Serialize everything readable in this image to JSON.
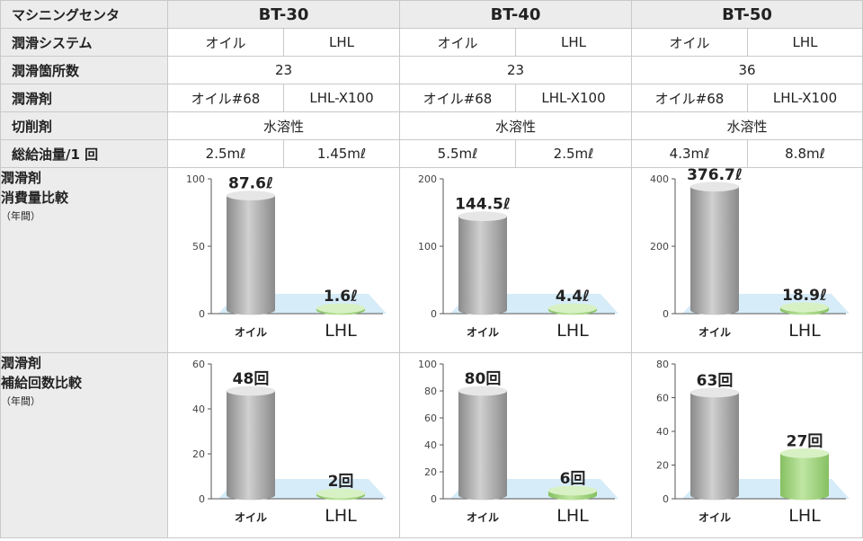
{
  "header": {
    "corner_label": "マシニングセンタ",
    "models": [
      "BT-30",
      "BT-40",
      "BT-50"
    ]
  },
  "rows": [
    {
      "label": "潤滑システム",
      "cells": [
        "オイル",
        "LHL",
        "オイル",
        "LHL",
        "オイル",
        "LHL"
      ]
    },
    {
      "label": "潤滑箇所数",
      "cells": [
        "23",
        "23",
        "36"
      ]
    },
    {
      "label": "潤滑剤",
      "cells": [
        "オイル#68",
        "LHL-X100",
        "オイル#68",
        "LHL-X100",
        "オイル#68",
        "LHL-X100"
      ]
    },
    {
      "label": "切削剤",
      "cells": [
        "水溶性",
        "水溶性",
        "水溶性"
      ]
    },
    {
      "label": "総給油量/1 回",
      "cells": [
        "2.5mℓ",
        "1.45mℓ",
        "5.5mℓ",
        "2.5mℓ",
        "4.3mℓ",
        "8.8mℓ"
      ]
    }
  ],
  "consumption": {
    "label_line1": "潤滑剤",
    "label_line2": "消費量比較",
    "label_sub": "（年間）"
  },
  "refill": {
    "label_line1": "潤滑剤",
    "label_line2": "補給回数比較",
    "label_sub": "（年間）"
  },
  "colors": {
    "oil": "#a8a8a8",
    "lhl": "#9fd07a",
    "floor": "#cfe9f7",
    "header_bg": "#ececec"
  },
  "chart_data": [
    {
      "type": "bar",
      "group": "consumption",
      "model": "BT-30",
      "categories": [
        "オイル",
        "LHL"
      ],
      "values": [
        87.6,
        1.6
      ],
      "value_labels": [
        "87.6ℓ",
        "1.6ℓ"
      ],
      "ylim": [
        0,
        100
      ],
      "yticks": [
        "0",
        "50",
        "100"
      ]
    },
    {
      "type": "bar",
      "group": "consumption",
      "model": "BT-40",
      "categories": [
        "オイル",
        "LHL"
      ],
      "values": [
        144.5,
        4.4
      ],
      "value_labels": [
        "144.5ℓ",
        "4.4ℓ"
      ],
      "ylim": [
        0,
        200
      ],
      "yticks": [
        "0",
        "100",
        "200"
      ]
    },
    {
      "type": "bar",
      "group": "consumption",
      "model": "BT-50",
      "categories": [
        "オイル",
        "LHL"
      ],
      "values": [
        376.7,
        18.9
      ],
      "value_labels": [
        "376.7ℓ",
        "18.9ℓ"
      ],
      "ylim": [
        0,
        400
      ],
      "yticks": [
        "0",
        "200",
        "400"
      ]
    },
    {
      "type": "bar",
      "group": "refill",
      "model": "BT-30",
      "categories": [
        "オイル",
        "LHL"
      ],
      "values": [
        48,
        2
      ],
      "value_labels": [
        "48回",
        "2回"
      ],
      "ylim": [
        0,
        60
      ],
      "yticks": [
        "0",
        "20",
        "40",
        "60"
      ]
    },
    {
      "type": "bar",
      "group": "refill",
      "model": "BT-40",
      "categories": [
        "オイル",
        "LHL"
      ],
      "values": [
        80,
        6
      ],
      "value_labels": [
        "80回",
        "6回"
      ],
      "ylim": [
        0,
        100
      ],
      "yticks": [
        "0",
        "20",
        "40",
        "60",
        "80",
        "100"
      ]
    },
    {
      "type": "bar",
      "group": "refill",
      "model": "BT-50",
      "categories": [
        "オイル",
        "LHL"
      ],
      "values": [
        63,
        27
      ],
      "value_labels": [
        "63回",
        "27回"
      ],
      "ylim": [
        0,
        80
      ],
      "yticks": [
        "0",
        "20",
        "40",
        "60",
        "80"
      ]
    }
  ]
}
